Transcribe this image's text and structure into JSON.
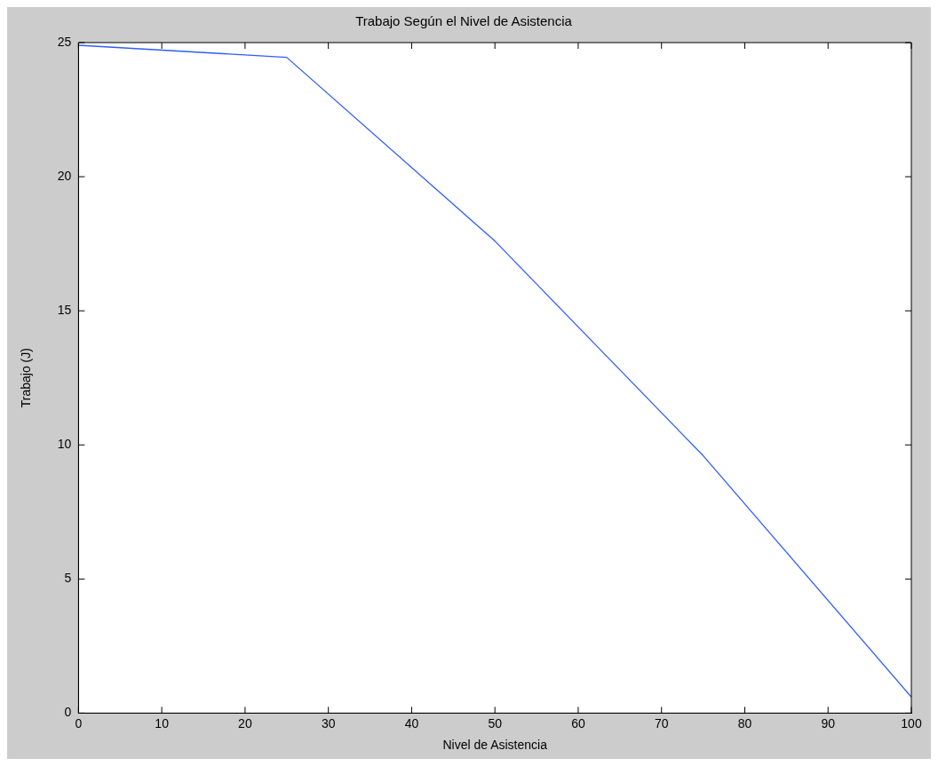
{
  "chart_data": {
    "type": "line",
    "title": "Trabajo Según el Nivel de Asistencia",
    "xlabel": "Nivel de Asistencia",
    "ylabel": "Trabajo (J)",
    "x": [
      0,
      25,
      50,
      75,
      100
    ],
    "series": [
      {
        "color": "#2f5bff",
        "values": [
          24.9,
          24.45,
          17.6,
          9.6,
          0.6
        ]
      }
    ],
    "xlim": [
      0,
      100
    ],
    "xticks": [
      0,
      10,
      20,
      30,
      40,
      50,
      60,
      70,
      80,
      90,
      100
    ],
    "ylim": [
      0,
      25
    ],
    "yticks": [
      0,
      5,
      10,
      15,
      20,
      25
    ],
    "grid": false,
    "legend": false,
    "marker": "none",
    "line_style": "solid"
  }
}
